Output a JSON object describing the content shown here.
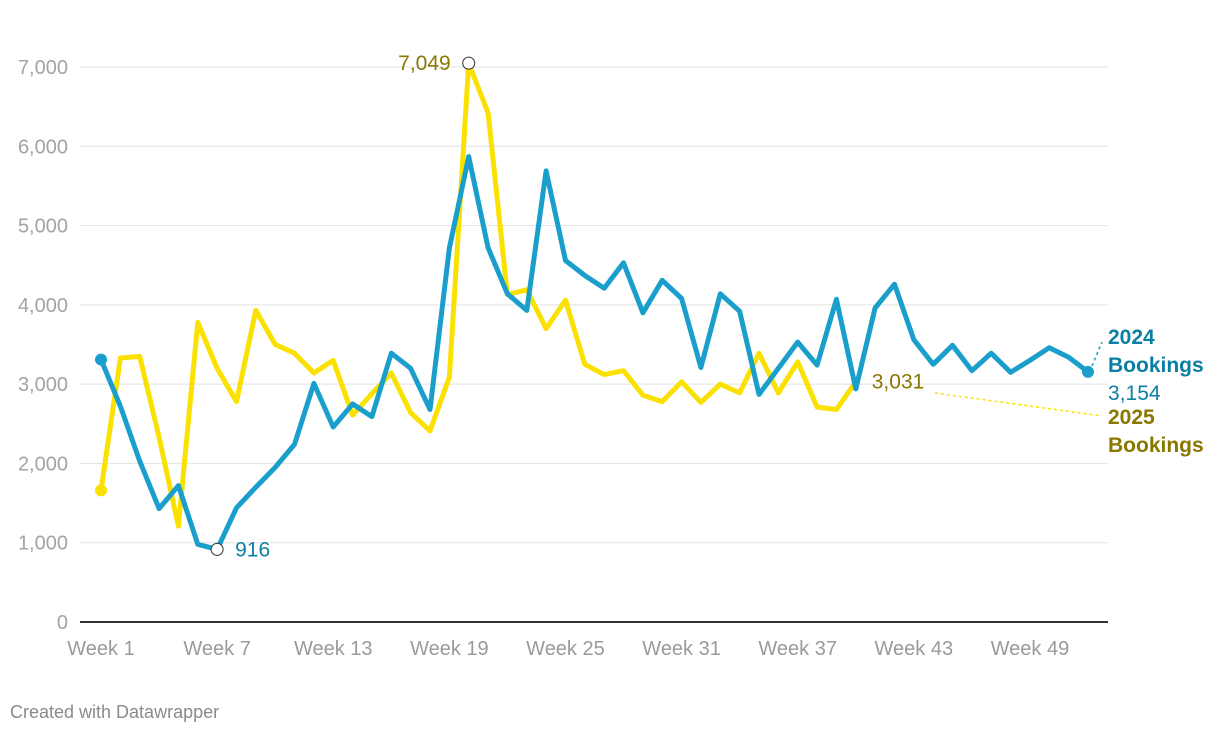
{
  "credit": "Created with Datawrapper",
  "chart_data": {
    "type": "line",
    "title": "",
    "xlabel": "",
    "ylabel": "",
    "ylim": [
      0,
      7000
    ],
    "yticks": [
      0,
      1000,
      2000,
      3000,
      4000,
      5000,
      6000,
      7000
    ],
    "ytick_labels": [
      "0",
      "1,000",
      "2,000",
      "3,000",
      "4,000",
      "5,000",
      "6,000",
      "7,000"
    ],
    "xlim": [
      1,
      52
    ],
    "xticks": [
      1,
      7,
      13,
      19,
      25,
      31,
      37,
      43,
      49
    ],
    "xtick_labels": [
      "Week 1",
      "Week 7",
      "Week 13",
      "Week 19",
      "Week 25",
      "Week 31",
      "Week 37",
      "Week 43",
      "Week 49"
    ],
    "grid": true,
    "series": [
      {
        "name": "2025 Bookings",
        "label_line1": "2025",
        "label_line2": "Bookings",
        "color": "#fae100",
        "label_color": "#8a7700",
        "x": [
          1,
          2,
          3,
          4,
          5,
          6,
          7,
          8,
          9,
          10,
          11,
          12,
          13,
          14,
          15,
          16,
          17,
          18,
          19,
          20,
          21,
          22,
          23,
          24,
          25,
          26,
          27,
          28,
          29,
          30,
          31,
          32,
          33,
          34,
          35,
          36,
          37,
          38,
          39,
          40
        ],
        "values": [
          1660,
          3330,
          3350,
          2330,
          1210,
          3780,
          3200,
          2780,
          3930,
          3500,
          3390,
          3140,
          3300,
          2610,
          2880,
          3140,
          2640,
          2410,
          3090,
          7049,
          6420,
          4130,
          4190,
          3700,
          4060,
          3250,
          3120,
          3170,
          2860,
          2780,
          3030,
          2770,
          3000,
          2890,
          3390,
          2890,
          3280,
          2710,
          2680,
          3031
        ],
        "annotations": [
          {
            "label": "7,049",
            "x": 20,
            "value": 7049
          },
          {
            "label": "3,031",
            "x": 40,
            "value": 3031
          }
        ]
      },
      {
        "name": "2024 Bookings",
        "label_line1": "2024",
        "label_line2": "Bookings",
        "value_label": "3,154",
        "color": "#1a9fcc",
        "label_color": "#0b7fa3",
        "x": [
          1,
          2,
          3,
          4,
          5,
          6,
          7,
          8,
          9,
          10,
          11,
          12,
          13,
          14,
          15,
          16,
          17,
          18,
          19,
          20,
          21,
          22,
          23,
          24,
          25,
          26,
          27,
          28,
          29,
          30,
          31,
          32,
          33,
          34,
          35,
          36,
          37,
          38,
          39,
          40,
          41,
          42,
          43,
          44,
          45,
          46,
          47,
          48,
          49,
          50,
          51,
          52
        ],
        "values": [
          3310,
          2720,
          2030,
          1430,
          1720,
          980,
          916,
          1440,
          1700,
          1950,
          2240,
          3010,
          2460,
          2750,
          2590,
          3390,
          3200,
          2680,
          4720,
          5870,
          4720,
          4140,
          3930,
          5690,
          4560,
          4370,
          4210,
          4530,
          3900,
          4310,
          4080,
          3210,
          4140,
          3920,
          2870,
          3200,
          3530,
          3240,
          4070,
          2940,
          3960,
          4260,
          3560,
          3250,
          3490,
          3170,
          3390,
          3150,
          3300,
          3460,
          3340,
          3154
        ],
        "annotations": [
          {
            "label": "916",
            "x": 7,
            "value": 916
          }
        ]
      }
    ]
  }
}
